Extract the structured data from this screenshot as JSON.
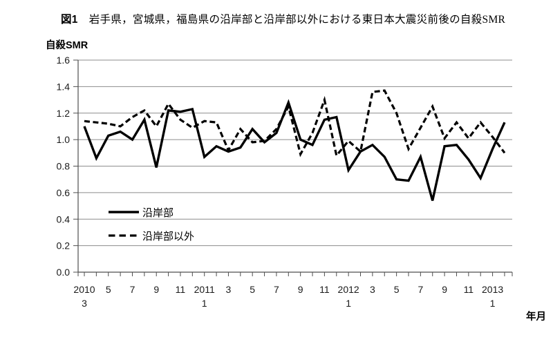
{
  "chart_data": {
    "type": "line",
    "figure_label": "図1",
    "title": "岩手県，宮城県，福島県の沿岸部と沿岸部以外における東日本大震災前後の自殺SMR",
    "ylabel": "自殺SMR",
    "xlabel": "年月",
    "ylim": [
      0.0,
      1.6
    ],
    "ytick_step": 0.2,
    "grid": true,
    "legend_position": "inside bottom-left",
    "grid_color": "#8c8c8c",
    "axis_color": "#4d4d4d",
    "line_color": "#000000",
    "x": [
      "2010/3",
      "2010/4",
      "2010/5",
      "2010/6",
      "2010/7",
      "2010/8",
      "2010/9",
      "2010/10",
      "2010/11",
      "2010/12",
      "2011/1",
      "2011/2",
      "2011/3",
      "2011/4",
      "2011/5",
      "2011/6",
      "2011/7",
      "2011/8",
      "2011/9",
      "2011/10",
      "2011/11",
      "2011/12",
      "2012/1",
      "2012/2",
      "2012/3",
      "2012/4",
      "2012/5",
      "2012/6",
      "2012/7",
      "2012/8",
      "2012/9",
      "2012/10",
      "2012/11",
      "2012/12",
      "2013/1",
      "2013/2"
    ],
    "x_tick_labels": [
      {
        "index": 0,
        "line1": "2010",
        "line2": "3"
      },
      {
        "index": 2,
        "line1": "5"
      },
      {
        "index": 4,
        "line1": "7"
      },
      {
        "index": 6,
        "line1": "9"
      },
      {
        "index": 8,
        "line1": "11"
      },
      {
        "index": 10,
        "line1": "2011",
        "line2": "1"
      },
      {
        "index": 12,
        "line1": "3"
      },
      {
        "index": 14,
        "line1": "5"
      },
      {
        "index": 16,
        "line1": "7"
      },
      {
        "index": 18,
        "line1": "9"
      },
      {
        "index": 20,
        "line1": "11"
      },
      {
        "index": 22,
        "line1": "2012",
        "line2": "1"
      },
      {
        "index": 24,
        "line1": "3"
      },
      {
        "index": 26,
        "line1": "5"
      },
      {
        "index": 28,
        "line1": "7"
      },
      {
        "index": 30,
        "line1": "9"
      },
      {
        "index": 32,
        "line1": "11"
      },
      {
        "index": 34,
        "line1": "2013",
        "line2": "1"
      }
    ],
    "series": [
      {
        "name": "沿岸部",
        "style": "solid",
        "color": "#000000",
        "values": [
          1.1,
          0.86,
          1.03,
          1.06,
          1.0,
          1.15,
          0.79,
          1.22,
          1.21,
          1.23,
          0.87,
          0.95,
          0.91,
          0.94,
          1.08,
          0.98,
          1.05,
          1.28,
          1.0,
          0.96,
          1.15,
          1.17,
          0.77,
          0.91,
          0.96,
          0.87,
          0.7,
          0.69,
          0.87,
          0.54,
          0.95,
          0.96,
          0.85,
          0.71,
          0.93,
          1.13
        ]
      },
      {
        "name": "沿岸部以外",
        "style": "dashed",
        "color": "#000000",
        "values": [
          1.14,
          1.13,
          1.12,
          1.1,
          1.17,
          1.22,
          1.1,
          1.27,
          1.15,
          1.09,
          1.14,
          1.13,
          0.92,
          1.08,
          0.98,
          0.99,
          1.08,
          1.25,
          0.89,
          1.05,
          1.3,
          0.88,
          0.99,
          0.91,
          1.36,
          1.37,
          1.2,
          0.93,
          1.09,
          1.25,
          1.01,
          1.13,
          1.01,
          1.13,
          1.02,
          0.9
        ]
      }
    ]
  }
}
